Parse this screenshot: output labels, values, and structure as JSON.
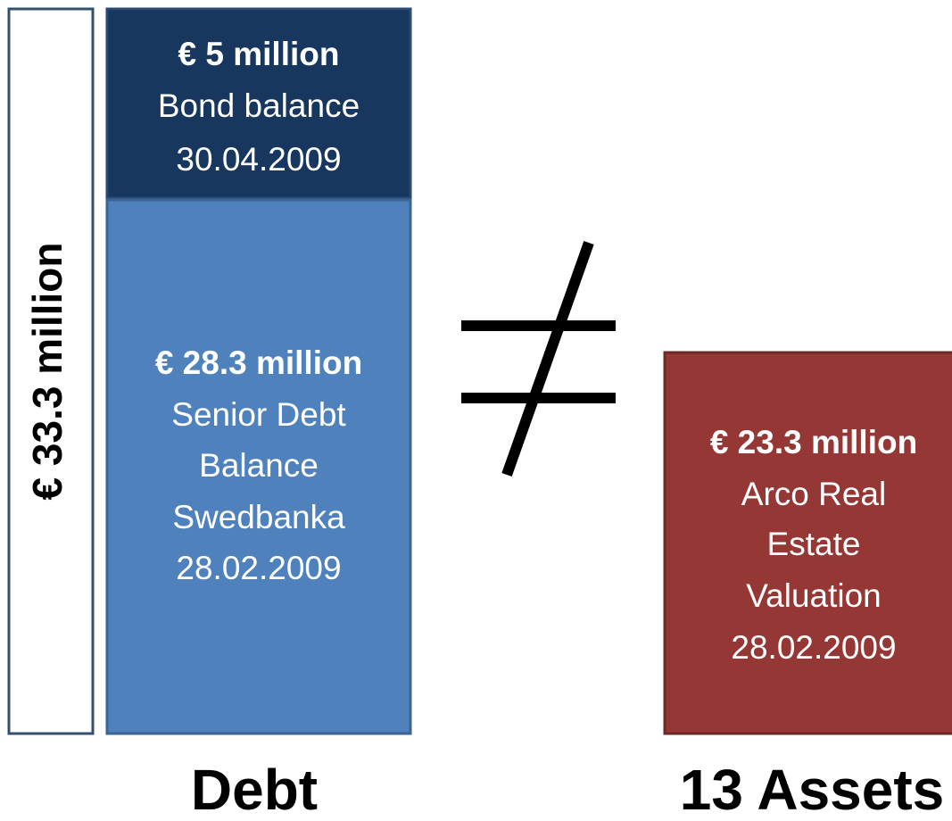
{
  "total": {
    "label": "€ 33.3 million"
  },
  "debt": {
    "bond": {
      "amount": "€ 5 million",
      "lines": [
        "Bond balance",
        "30.04.2009"
      ]
    },
    "senior": {
      "amount": "€ 28.3 million",
      "lines": [
        "Senior Debt",
        "Balance",
        "Swedbanka",
        "28.02.2009"
      ]
    },
    "label": "Debt"
  },
  "assets": {
    "amount": "€ 23.3 million",
    "lines": [
      "Arco Real",
      "Estate",
      "Valuation",
      "28.02.2009"
    ],
    "label": "13 Assets"
  }
}
